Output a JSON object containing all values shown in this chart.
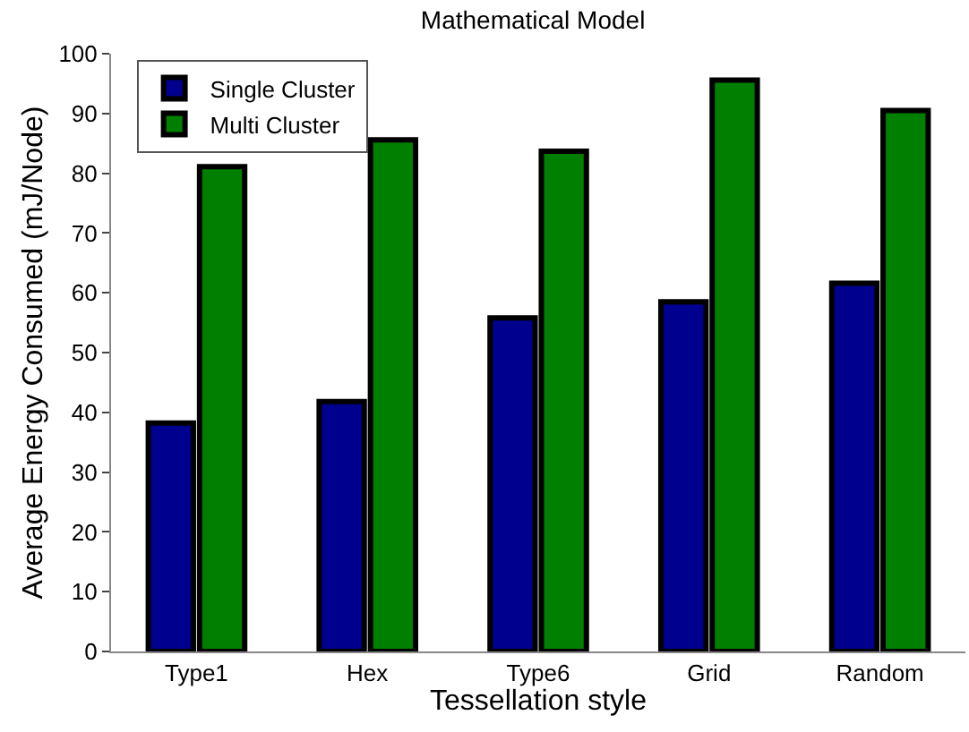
{
  "chart_data": {
    "type": "bar",
    "title": "Mathematical Model",
    "xlabel": "Tessellation style",
    "ylabel": "Average Energy Consumed (mJ/Node)",
    "categories": [
      "Type1",
      "Hex",
      "Type6",
      "Grid",
      "Random"
    ],
    "series": [
      {
        "name": "Single Cluster",
        "color": "#00008f",
        "values": [
          38.2,
          41.8,
          55.8,
          58.5,
          61.6
        ]
      },
      {
        "name": "Multi Cluster",
        "color": "#007f00",
        "values": [
          81.1,
          85.6,
          83.7,
          95.6,
          90.5
        ]
      }
    ],
    "ylim": [
      0,
      100
    ],
    "yticks": [
      0,
      10,
      20,
      30,
      40,
      50,
      60,
      70,
      80,
      90,
      100
    ],
    "legend": "top left"
  }
}
